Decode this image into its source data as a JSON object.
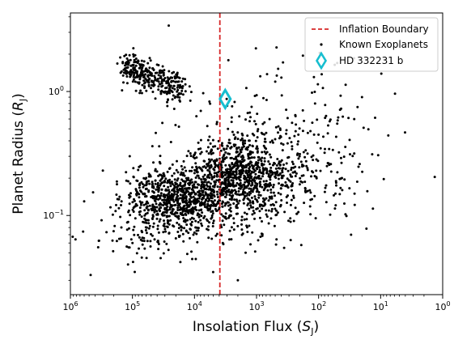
{
  "colors": {
    "points": "#000000",
    "boundary": "#d62728",
    "highlight": "#17becf",
    "legend_frame": "#cccccc"
  },
  "chart_data": {
    "type": "scatter",
    "title": "",
    "xlabel": "Insolation Flux (S_J)",
    "ylabel": "Planet Radius (R_J)",
    "xscale": "log",
    "x_reversed": true,
    "yscale": "log",
    "xlim": [
      1000000,
      1
    ],
    "ylim": [
      0.023,
      4.3
    ],
    "grid": false,
    "x_ticks": [
      {
        "base": "10",
        "exp": "6"
      },
      {
        "base": "10",
        "exp": "5"
      },
      {
        "base": "10",
        "exp": "4"
      },
      {
        "base": "10",
        "exp": "3"
      },
      {
        "base": "10",
        "exp": "2"
      },
      {
        "base": "10",
        "exp": "1"
      },
      {
        "base": "10",
        "exp": "0"
      }
    ],
    "y_ticks": [
      {
        "base": "10",
        "exp": "0",
        "sign": ""
      },
      {
        "base": "10",
        "exp": "1",
        "sign": "−1"
      }
    ],
    "legend": {
      "placement": "top-right",
      "entries": [
        "Inflation Boundary",
        "Known Exoplanets",
        "HD 332231 b"
      ]
    },
    "inflation_boundary_x": 3900,
    "highlight_point": {
      "name": "HD 332231 b",
      "x": 3200,
      "y": 0.87
    },
    "scatter_clusters": [
      {
        "name": "Known Exoplanets",
        "kind": "band",
        "n": 330,
        "logx": [
          5.15,
          4.2
        ],
        "logy": [
          0.21,
          0.0
        ],
        "scatter_y": 0.06
      },
      {
        "name": "Known Exoplanets",
        "kind": "cloud",
        "n": 650,
        "logx_c": 3.35,
        "logx_sd": 0.38,
        "logy_c": -0.68,
        "logy_sd": 0.14
      },
      {
        "name": "Known Exoplanets",
        "kind": "cloud",
        "n": 700,
        "logx_c": 4.3,
        "logx_sd": 0.45,
        "logy_c": -0.86,
        "logy_sd": 0.12
      },
      {
        "name": "Known Exoplanets",
        "kind": "cloud",
        "n": 380,
        "logx_c": 3.0,
        "logx_sd": 0.7,
        "logy_c": -0.75,
        "logy_sd": 0.2
      },
      {
        "name": "Known Exoplanets",
        "kind": "cloud",
        "n": 160,
        "logx_c": 4.5,
        "logx_sd": 0.5,
        "logy_c": -1.1,
        "logy_sd": 0.15
      },
      {
        "name": "Known Exoplanets",
        "kind": "cloud",
        "n": 140,
        "logx_c": 2.6,
        "logx_sd": 0.8,
        "logy_c": -0.25,
        "logy_sd": 0.3
      },
      {
        "name": "Known Exoplanets",
        "kind": "cloud",
        "n": 60,
        "logx_c": 2.2,
        "logx_sd": 0.6,
        "logy_c": -0.5,
        "logy_sd": 0.25
      }
    ],
    "outlier_points": [
      [
        26000,
        3.4
      ],
      [
        30,
        0.07
      ],
      [
        2000,
        0.03
      ],
      [
        5000,
        0.035
      ],
      [
        150000,
        0.13
      ],
      [
        20,
        0.9
      ],
      [
        50,
        0.55
      ],
      [
        500,
        1.2
      ],
      [
        12000,
        1.1
      ],
      [
        600000,
        0.13
      ],
      [
        300000,
        0.23
      ],
      [
        80,
        0.32
      ],
      [
        1500,
        0.05
      ],
      [
        3500,
        0.06
      ],
      [
        100000,
        0.06
      ]
    ]
  }
}
